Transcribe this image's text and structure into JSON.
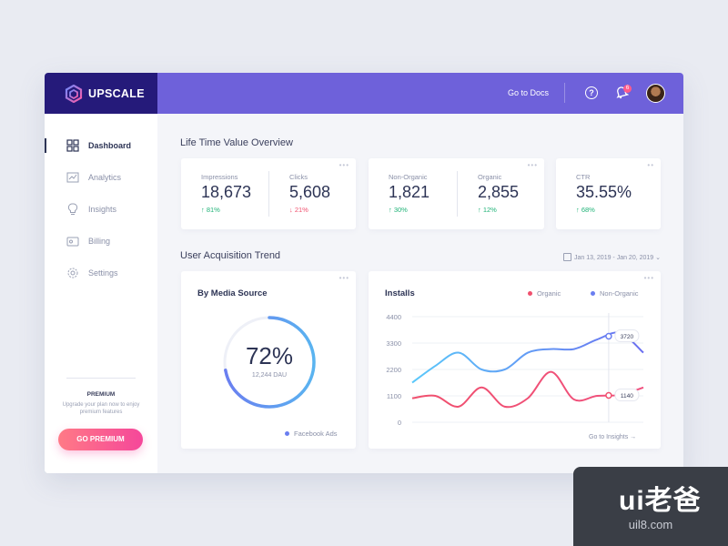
{
  "brand": {
    "name": "UPSCALE",
    "color": "#251a7a"
  },
  "topbar": {
    "docs_label": "Go to Docs",
    "help_label": "?",
    "notification_count": "6",
    "accent": "#6e61da"
  },
  "sidebar": {
    "items": [
      {
        "label": "Dashboard",
        "icon": "grid-icon",
        "active": true
      },
      {
        "label": "Analytics",
        "icon": "line-chart-icon"
      },
      {
        "label": "Insights",
        "icon": "lightbulb-icon"
      },
      {
        "label": "Billing",
        "icon": "wallet-icon"
      },
      {
        "label": "Settings",
        "icon": "gear-icon"
      }
    ],
    "premium": {
      "title": "PREMIUM",
      "description": "Upgrade your plan now to enjoy premium features",
      "button_label": "GO PREMIUM"
    }
  },
  "ltv": {
    "title": "Life Time Value Overview",
    "card1": [
      {
        "label": "Impressions",
        "value": "18,673",
        "change": "81%",
        "direction": "up"
      },
      {
        "label": "Clicks",
        "value": "5,608",
        "change": "21%",
        "direction": "down"
      }
    ],
    "card2": [
      {
        "label": "Non-Organic",
        "value": "1,821",
        "change": "30%",
        "direction": "up"
      },
      {
        "label": "Organic",
        "value": "2,855",
        "change": "12%",
        "direction": "up"
      }
    ],
    "card3": [
      {
        "label": "CTR",
        "value": "35.55%",
        "change": "68%",
        "direction": "up"
      }
    ]
  },
  "acquisition": {
    "title": "User Acquisition Trend",
    "date_range": "Jan 13, 2019 - Jan 20, 2019",
    "media": {
      "title": "By Media Source",
      "percent_label": "72%",
      "percent": 72,
      "sub": "12,244 DAU",
      "legend": "Facebook Ads"
    },
    "installs": {
      "title": "Installs",
      "legend_organic": "Organic",
      "legend_nonorganic": "Non-Organic",
      "link": "Go to Insights",
      "color_organic": "#f0506e",
      "color_nonorganic": "#6a7ef0"
    }
  },
  "chart_data": {
    "type": "line",
    "title": "Installs",
    "y_ticks": [
      "4400",
      "3300",
      "2200",
      "1100",
      "0"
    ],
    "ylim": [
      0,
      4400
    ],
    "x": [
      0,
      1,
      2,
      3,
      4,
      5,
      6,
      7,
      8,
      9,
      10
    ],
    "series": [
      {
        "name": "Non-Organic",
        "values": [
          1650,
          2350,
          2900,
          2200,
          2200,
          2900,
          3050,
          3050,
          3450,
          3720,
          2900
        ]
      },
      {
        "name": "Organic",
        "values": [
          1000,
          1100,
          650,
          1450,
          650,
          1000,
          2100,
          950,
          1100,
          1140,
          1450
        ]
      }
    ],
    "annotations": [
      {
        "series": "Non-Organic",
        "x": 8.5,
        "label": "3720"
      },
      {
        "series": "Organic",
        "x": 8.5,
        "label": "1140"
      }
    ]
  },
  "watermark": {
    "text": "ui老爸",
    "url": "uil8.com"
  }
}
